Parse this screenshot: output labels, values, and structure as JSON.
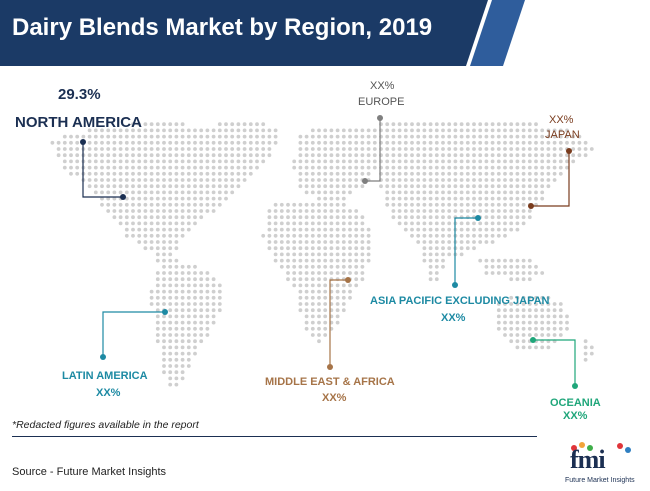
{
  "header": {
    "title": "Dairy Blends Market by Region, 2019",
    "bg_color": "#1b3a66",
    "accent_color": "#2f5d9c"
  },
  "regions": {
    "north_america": {
      "value": "29.3%",
      "name": "NORTH AMERICA",
      "color": "#1b2f52"
    },
    "europe": {
      "value": "XX%",
      "name": "EUROPE",
      "color": "#7f7f7f"
    },
    "japan": {
      "value": "XX%",
      "name": "JAPAN",
      "color": "#7a3c1e"
    },
    "asia_pacific_excluding_japan": {
      "value": "XX%",
      "name": "ASIA PACIFIC EXCLUDING JAPAN",
      "color": "#1d8aa3"
    },
    "latin_america": {
      "value": "XX%",
      "name": "LATIN AMERICA",
      "color": "#1d8aa3"
    },
    "middle_east_africa": {
      "value": "XX%",
      "name": "MIDDLE EAST & AFRICA",
      "color": "#a67448"
    },
    "oceania": {
      "value": "XX%",
      "name": "OCEANIA",
      "color": "#1fa67a"
    }
  },
  "footer": {
    "note": "*Redacted figures available in the report",
    "source": "Source - Future Market Insights"
  },
  "logo": {
    "text": "fmi",
    "subtitle": "Future Market Insights"
  }
}
